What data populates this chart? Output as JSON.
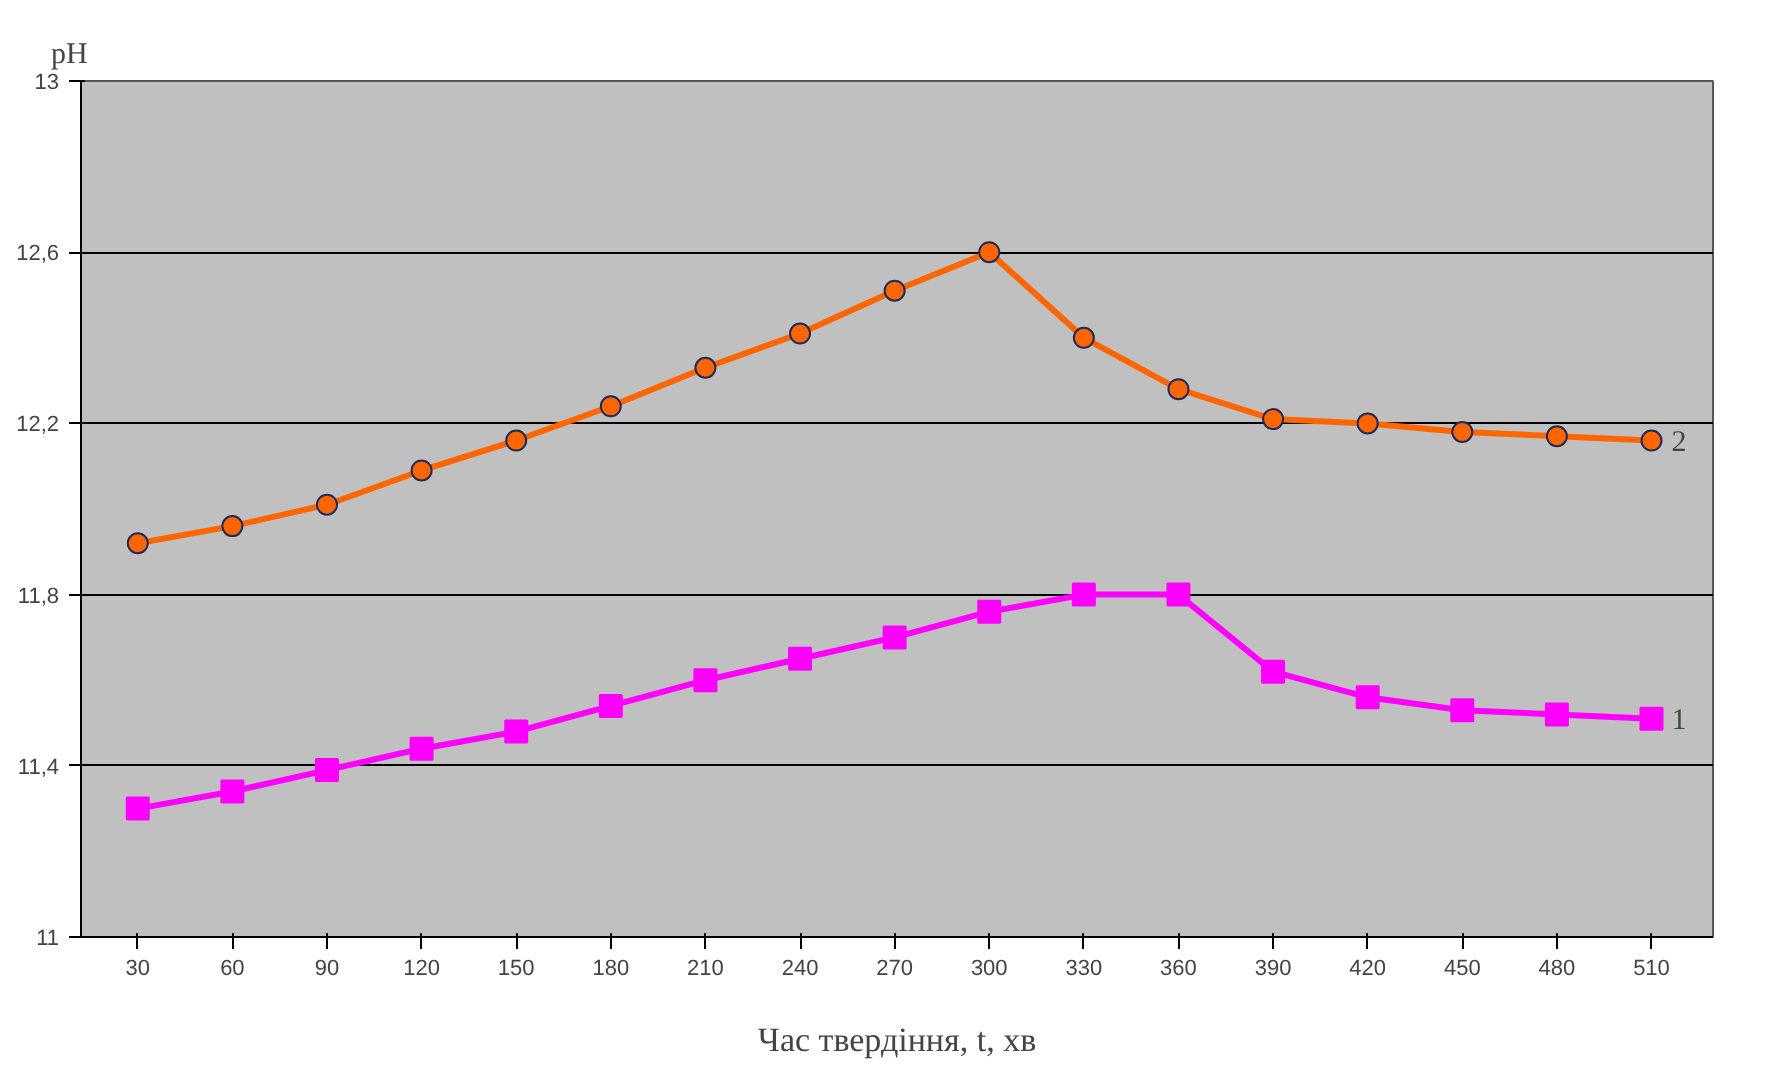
{
  "chart_data": {
    "type": "line",
    "xlabel": "Час твердіння, t, хв",
    "ylabel": "pH",
    "categories": [
      "30",
      "60",
      "90",
      "120",
      "150",
      "180",
      "210",
      "240",
      "270",
      "300",
      "330",
      "360",
      "390",
      "420",
      "450",
      "480",
      "510"
    ],
    "series": [
      {
        "name": "2",
        "color": "#ff6600",
        "marker": "circle",
        "values": [
          11.92,
          11.96,
          12.01,
          12.09,
          12.16,
          12.24,
          12.33,
          12.41,
          12.51,
          12.6,
          12.4,
          12.28,
          12.21,
          12.2,
          12.18,
          12.17,
          12.16
        ]
      },
      {
        "name": "1",
        "color": "#ff00ff",
        "marker": "square",
        "values": [
          11.3,
          11.34,
          11.39,
          11.44,
          11.48,
          11.54,
          11.6,
          11.65,
          11.7,
          11.76,
          11.8,
          11.8,
          11.62,
          11.56,
          11.53,
          11.52,
          11.51
        ]
      }
    ],
    "ylim": [
      11,
      13
    ],
    "yticks": [
      {
        "value": 11,
        "label": "11"
      },
      {
        "value": 11.4,
        "label": "11,4"
      },
      {
        "value": 11.8,
        "label": "11,8"
      },
      {
        "value": 12.2,
        "label": "12,2"
      },
      {
        "value": 12.6,
        "label": "12,6"
      },
      {
        "value": 13,
        "label": "13"
      }
    ],
    "grid": "y",
    "line_style": "solid"
  }
}
